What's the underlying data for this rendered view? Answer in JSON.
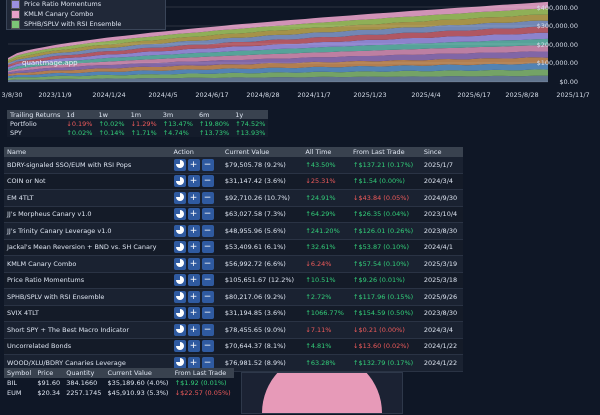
{
  "chart": {
    "watermark": "quantmage.app",
    "legend": [
      {
        "label": "Price Ratio Momentums",
        "color": "#9b8fe0"
      },
      {
        "label": "KMLM Canary Combo",
        "color": "#e7a1c8"
      },
      {
        "label": "SPHB/SPLV with RSI Ensemble",
        "color": "#7cc576"
      }
    ],
    "y_labels": [
      "$400,000.00",
      "$300,000.00",
      "$200,000.00",
      "$100,000.00",
      "$0.00"
    ],
    "x_labels": [
      "3/8/30",
      "2023/11/9",
      "2024/1/24",
      "2024/4/5",
      "2024/6/17",
      "2024/8/28",
      "2024/11/7",
      "2025/1/23",
      "2025/4/4",
      "2025/6/17",
      "2025/8/28",
      "2025/11/7"
    ]
  },
  "trailing": {
    "headers": [
      "Trailing Returns",
      "1d",
      "1w",
      "1m",
      "3m",
      "6m",
      "1y"
    ],
    "rows": [
      {
        "name": "Portfolio",
        "vals": [
          {
            "t": "0.19%",
            "d": "down"
          },
          {
            "t": "0.02%",
            "d": "up"
          },
          {
            "t": "1.29%",
            "d": "down"
          },
          {
            "t": "13.47%",
            "d": "up"
          },
          {
            "t": "19.80%",
            "d": "up"
          },
          {
            "t": "74.52%",
            "d": "up"
          }
        ]
      },
      {
        "name": "SPY",
        "vals": [
          {
            "t": "0.02%",
            "d": "up"
          },
          {
            "t": "0.14%",
            "d": "up"
          },
          {
            "t": "1.71%",
            "d": "up"
          },
          {
            "t": "4.74%",
            "d": "up"
          },
          {
            "t": "13.73%",
            "d": "up"
          },
          {
            "t": "13.93%",
            "d": "up"
          }
        ]
      }
    ]
  },
  "strategies": {
    "headers": [
      "Name",
      "Action",
      "Current Value",
      "All Time",
      "From Last Trade",
      "Since"
    ],
    "rows": [
      {
        "name": "BDRY-signaled SSO/EUM with RSI Pops",
        "value": "$79,505.78 (9.2%)",
        "all": "43.50%",
        "ad": "up",
        "last": "$137.21 (0.17%)",
        "ld": "up",
        "since": "2025/1/7"
      },
      {
        "name": "COIN or Not",
        "value": "$31,147.42 (3.6%)",
        "all": "25.31%",
        "ad": "down",
        "last": "$1.54 (0.00%)",
        "ld": "up",
        "since": "2024/3/4"
      },
      {
        "name": "EM 4TLT",
        "value": "$92,710.26 (10.7%)",
        "all": "24.91%",
        "ad": "up",
        "last": "$43.84 (0.05%)",
        "ld": "down",
        "since": "2024/9/30"
      },
      {
        "name": "JJ's Morpheus Canary v1.0",
        "value": "$63,027.58 (7.3%)",
        "all": "64.29%",
        "ad": "up",
        "last": "$26.35 (0.04%)",
        "ld": "up",
        "since": "2023/10/4"
      },
      {
        "name": "JJ's Trinity Canary Leverage v1.0",
        "value": "$48,955.96 (5.6%)",
        "all": "241.20%",
        "ad": "up",
        "last": "$126.01 (0.26%)",
        "ld": "up",
        "since": "2023/8/30"
      },
      {
        "name": "Jackal's Mean Reversion + BND vs. SH Canary",
        "value": "$53,409.61 (6.1%)",
        "all": "32.61%",
        "ad": "up",
        "last": "$53.87 (0.10%)",
        "ld": "up",
        "since": "2024/4/1"
      },
      {
        "name": "KMLM Canary Combo",
        "value": "$56,992.72 (6.6%)",
        "all": "6.24%",
        "ad": "down",
        "last": "$57.54 (0.10%)",
        "ld": "up",
        "since": "2025/3/19"
      },
      {
        "name": "Price Ratio Momentums",
        "value": "$105,651.67 (12.2%)",
        "all": "10.51%",
        "ad": "up",
        "last": "$9.26 (0.01%)",
        "ld": "up",
        "since": "2025/3/18"
      },
      {
        "name": "SPHB/SPLV with RSI Ensemble",
        "value": "$80,217.06 (9.2%)",
        "all": "2.72%",
        "ad": "up",
        "last": "$117.96 (0.15%)",
        "ld": "up",
        "since": "2025/9/26"
      },
      {
        "name": "SVIX 4TLT",
        "value": "$31,194.85 (3.6%)",
        "all": "1066.77%",
        "ad": "up",
        "last": "$154.59 (0.50%)",
        "ld": "up",
        "since": "2023/8/30"
      },
      {
        "name": "Short SPY + The Best Macro Indicator",
        "value": "$78,455.65 (9.0%)",
        "all": "7.11%",
        "ad": "down",
        "last": "$0.21 (0.00%)",
        "ld": "down",
        "since": "2024/3/4"
      },
      {
        "name": "Uncorrelated Bonds",
        "value": "$70,644.37 (8.1%)",
        "all": "4.81%",
        "ad": "up",
        "last": "$13.60 (0.02%)",
        "ld": "down",
        "since": "2024/1/22"
      },
      {
        "name": "WOOD/XLU/BDRY Canaries Leverage",
        "value": "$76,981.52 (8.9%)",
        "all": "63.28%",
        "ad": "up",
        "last": "$132.79 (0.17%)",
        "ld": "up",
        "since": "2024/1/22"
      }
    ]
  },
  "holdings": {
    "headers": [
      "Symbol",
      "Price",
      "Quantity",
      "Current Value",
      "From Last Trade"
    ],
    "rows": [
      {
        "sym": "BIL",
        "price": "$91.60",
        "qty": "384.1660",
        "value": "$35,189.60 (4.0%)",
        "last": "$1.92 (0.01%)",
        "ld": "up"
      },
      {
        "sym": "EUM",
        "price": "$20.34",
        "qty": "2257.1745",
        "value": "$45,910.93 (5.3%)",
        "last": "$22.57 (0.05%)",
        "ld": "down"
      }
    ]
  },
  "icons": {
    "up": "↑",
    "down": "↓",
    "plus": "+",
    "minus": "−"
  }
}
